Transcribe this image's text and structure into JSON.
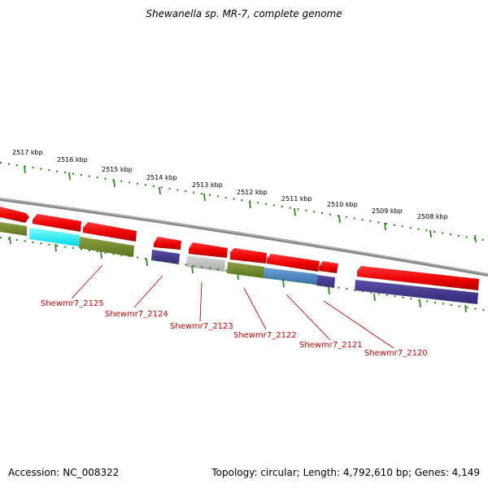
{
  "title": "Shewanella sp. MR-7, complete genome",
  "footer": {
    "accession": "Accession: NC_008322",
    "summary": "Topology: circular; Length: 4,792,610 bp; Genes: 4,149"
  },
  "colors": {
    "label_red": "#cc0000",
    "tick_green": "#2a8a1a",
    "backbone_gray": "#888888"
  },
  "ruler": [
    {
      "label": "2517 kbp"
    },
    {
      "label": "2516 kbp"
    },
    {
      "label": "2515 kbp"
    },
    {
      "label": "2514 kbp"
    },
    {
      "label": "2513 kbp"
    },
    {
      "label": "2512 kbp"
    },
    {
      "label": "2511 kbp"
    },
    {
      "label": "2510 kbp"
    },
    {
      "label": "2509 kbp"
    },
    {
      "label": "2508 kbp"
    }
  ],
  "gene_labels": [
    {
      "label": "Shewmr7_2125"
    },
    {
      "label": "Shewmr7_2124"
    },
    {
      "label": "Shewmr7_2123"
    },
    {
      "label": "Shewmr7_2122"
    },
    {
      "label": "Shewmr7_2121"
    },
    {
      "label": "Shewmr7_2120"
    }
  ]
}
